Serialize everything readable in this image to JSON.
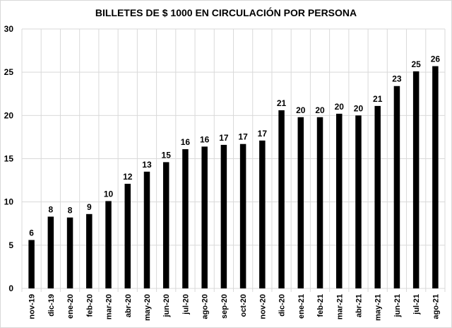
{
  "chart_data": {
    "type": "bar",
    "title": "BILLETES DE $ 1000 EN CIRCULACIÓN POR PERSONA",
    "xlabel": "",
    "ylabel": "",
    "ylim": [
      0,
      30
    ],
    "yticks": [
      0,
      5,
      10,
      15,
      20,
      25,
      30
    ],
    "grid": true,
    "legend": "none",
    "bar_color": "#000000",
    "categories": [
      "nov-19",
      "dic-19",
      "ene-20",
      "feb-20",
      "mar-20",
      "abr-20",
      "may-20",
      "jun-20",
      "jul-20",
      "ago-20",
      "sep-20",
      "oct-20",
      "nov-20",
      "dic-20",
      "ene-21",
      "feb-21",
      "mar-21",
      "abr-21",
      "may-21",
      "jun-21",
      "jul-21",
      "ago-21"
    ],
    "values": [
      5.6,
      8.3,
      8.2,
      8.6,
      10.1,
      12.1,
      13.5,
      14.6,
      16.1,
      16.4,
      16.6,
      16.7,
      17.1,
      20.6,
      19.8,
      19.8,
      20.2,
      20.0,
      21.1,
      23.4,
      25.1,
      25.7
    ],
    "data_labels": [
      "6",
      "8",
      "8",
      "9",
      "10",
      "12",
      "13",
      "15",
      "16",
      "16",
      "17",
      "17",
      "17",
      "21",
      "20",
      "20",
      "20",
      "20",
      "21",
      "23",
      "25",
      "26"
    ]
  }
}
